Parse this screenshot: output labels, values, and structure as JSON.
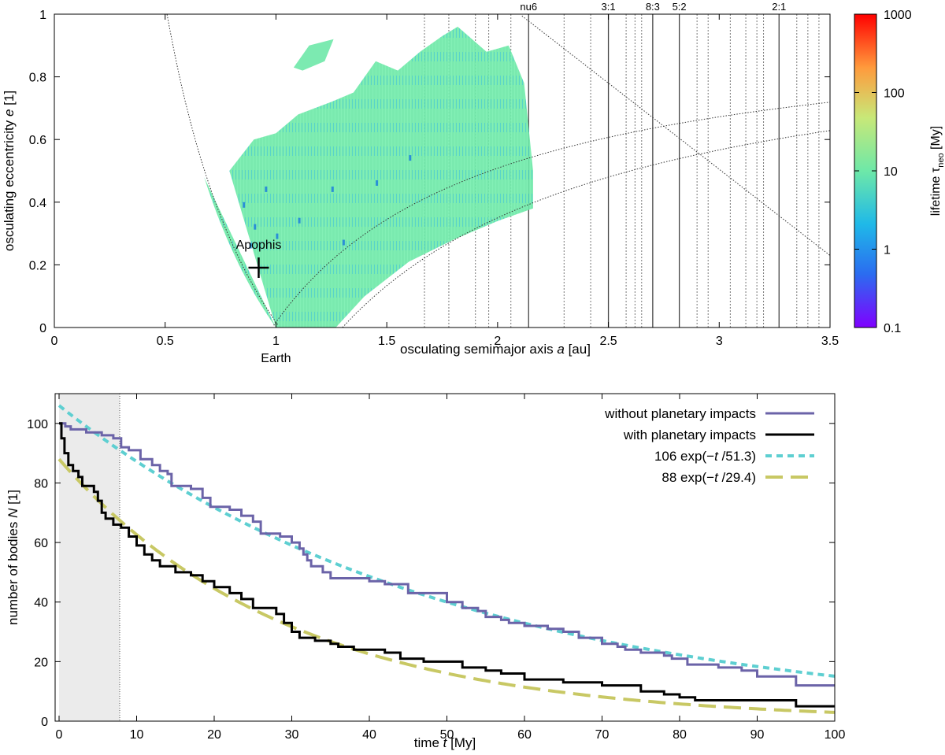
{
  "chart_data": [
    {
      "type": "scatter",
      "xlabel": "osculating semimajor axis a [au]",
      "ylabel": "osculating eccentricity e [1]",
      "xlim": [
        0,
        3.5
      ],
      "ylim": [
        0,
        1
      ],
      "xticks": [
        0,
        0.5,
        1,
        1.5,
        2,
        2.5,
        3,
        3.5
      ],
      "xtick_labels": [
        "0",
        "0.5",
        "1",
        "1.5",
        "2",
        "2.5",
        "3",
        "3.5"
      ],
      "yticks": [
        0,
        0.2,
        0.4,
        0.6,
        0.8,
        1
      ],
      "ytick_labels": [
        "0",
        "0.2",
        "0.4",
        "0.6",
        "0.8",
        "1"
      ],
      "resonances": [
        {
          "label": "nu6",
          "a": 2.14
        },
        {
          "label": "3:1",
          "a": 2.5
        },
        {
          "label": "8:3",
          "a": 2.7
        },
        {
          "label": "5:2",
          "a": 2.82
        },
        {
          "label": "2:1",
          "a": 3.27
        }
      ],
      "secondary_resonance_lines_a": [
        1.67,
        1.78,
        1.9,
        1.96,
        2.06,
        2.3,
        2.42,
        2.58,
        2.62,
        2.65,
        2.9,
        2.95,
        3.05,
        3.12,
        3.17,
        3.2,
        3.35,
        3.4,
        3.45
      ],
      "annotations": [
        {
          "label": "Apophis",
          "a": 0.922,
          "e": 0.191
        },
        {
          "label": "Earth",
          "a": 1.0,
          "e": 0
        }
      ],
      "colorbar": {
        "label": "lifetime τneo [My]",
        "label_main": "lifetime τ",
        "label_sub": "neo",
        "label_unit": " [My]",
        "scale": "log",
        "range": [
          0.1,
          1000
        ],
        "ticks": [
          "0.1",
          "1",
          "10",
          "100",
          "1000"
        ]
      }
    },
    {
      "type": "line",
      "xlabel": "time t [My]",
      "ylabel": "number of bodies N [1]",
      "xlim": [
        0,
        100
      ],
      "ylim": [
        0,
        110
      ],
      "xticks": [
        "0",
        "10",
        "20",
        "30",
        "40",
        "50",
        "60",
        "70",
        "80",
        "90",
        "100"
      ],
      "yticks": [
        "0",
        "20",
        "40",
        "60",
        "80",
        "100"
      ],
      "shaded_interval": [
        0,
        8
      ],
      "legend_position": "top-right",
      "series": [
        {
          "name": "without planetary impacts",
          "color": "#6b63a8",
          "x": [
            0,
            0.8,
            1.5,
            3,
            3.5,
            5.5,
            7,
            8,
            9,
            10.5,
            12,
            13,
            14,
            14.5,
            17,
            18.5,
            19.5,
            22,
            23.5,
            25,
            26,
            28.5,
            30,
            31,
            31.5,
            32,
            32.5,
            34,
            35,
            40,
            42,
            45,
            50,
            52,
            54,
            55,
            57,
            58,
            60,
            63,
            65,
            67,
            70,
            72,
            73,
            75,
            78,
            79,
            81,
            85,
            88,
            90,
            95,
            100
          ],
          "values": [
            100,
            99,
            98,
            98,
            97,
            96,
            95,
            92,
            91,
            88,
            86,
            84,
            83,
            79,
            78,
            75,
            72,
            71,
            69,
            67,
            63,
            62,
            60,
            58,
            56,
            54,
            52,
            50,
            48,
            47,
            46,
            43,
            40,
            38,
            37,
            35,
            34,
            33,
            32,
            31,
            30,
            28,
            26,
            25,
            24,
            23,
            22,
            21,
            19,
            18,
            17,
            15,
            12,
            12
          ]
        },
        {
          "name": "with planetary impacts",
          "color": "#000000",
          "x": [
            0,
            0.3,
            0.7,
            1.2,
            1.8,
            2.5,
            3,
            4.5,
            5,
            5.5,
            6,
            7,
            8,
            9,
            10,
            11,
            12,
            13,
            15,
            17,
            18.5,
            20,
            22,
            23.5,
            25,
            28,
            29,
            30,
            31,
            33,
            35,
            36,
            38,
            42,
            44,
            47,
            52,
            55,
            57,
            60,
            65,
            70,
            75,
            78,
            80,
            82,
            85,
            90,
            95,
            100
          ],
          "values": [
            100,
            95,
            90,
            86,
            84,
            82,
            79,
            77,
            74,
            70,
            68,
            66,
            65,
            62,
            59,
            56,
            54,
            52,
            50,
            49,
            47,
            45,
            43,
            41,
            38,
            36,
            33,
            30,
            28,
            27,
            26,
            25,
            24,
            23,
            21,
            20,
            18,
            17,
            16,
            14,
            13,
            12,
            10,
            9,
            8,
            7,
            7,
            7,
            5,
            5
          ]
        },
        {
          "name": "106 exp(−t /51.3)",
          "color": "#5ecfd1",
          "dash": "short",
          "a": 106,
          "tau": 51.3
        },
        {
          "name": "88 exp(−t /29.4)",
          "color": "#c8c864",
          "dash": "long",
          "a": 88,
          "tau": 29.4
        }
      ],
      "legend": [
        {
          "pre": "without planetary impacts",
          "it": "",
          "post": ""
        },
        {
          "pre": "with planetary impacts",
          "it": "",
          "post": ""
        },
        {
          "pre": "106 exp(−",
          "it": "t",
          "post": " /51.3)"
        },
        {
          "pre": "88 exp(−",
          "it": "t",
          "post": " /29.4)"
        }
      ]
    }
  ],
  "labels": {
    "top_ylabel_main": "osculating eccentricity ",
    "top_ylabel_it": "e",
    "top_ylabel_unit": " [1]",
    "top_xlabel_main": "osculating semimajor axis ",
    "top_xlabel_it": "a",
    "top_xlabel_unit": " [au]",
    "bottom_ylabel_main": "number of bodies ",
    "bottom_ylabel_it": "N",
    "bottom_ylabel_unit": " [1]",
    "bottom_xlabel_main": "time ",
    "bottom_xlabel_it": "t",
    "bottom_xlabel_unit": " [My]"
  }
}
